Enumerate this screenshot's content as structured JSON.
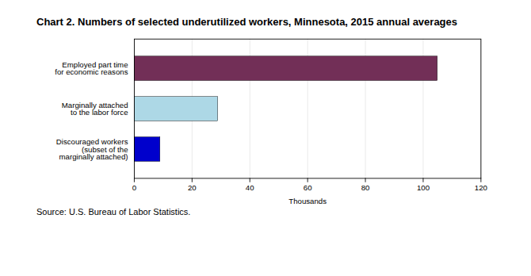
{
  "chart_data": {
    "type": "bar",
    "orientation": "horizontal",
    "title": "Chart 2. Numbers of selected underutilized workers, Minnesota, 2015 annual averages",
    "categories": [
      "Discouraged workers\n(subset of the\nmarginally attached)",
      "Marginally attached\nto the labor force",
      "Employed part time\nfor economic reasons"
    ],
    "values": [
      9,
      29,
      105
    ],
    "colors": [
      "#0000cc",
      "#add8e6",
      "#722f57"
    ],
    "xlabel": "Thousands",
    "xlim": [
      0,
      120
    ],
    "xticks": [
      0,
      20,
      40,
      60,
      80,
      100,
      120
    ],
    "grid": true,
    "source": "Source: U.S. Bureau of Labor Statistics."
  }
}
